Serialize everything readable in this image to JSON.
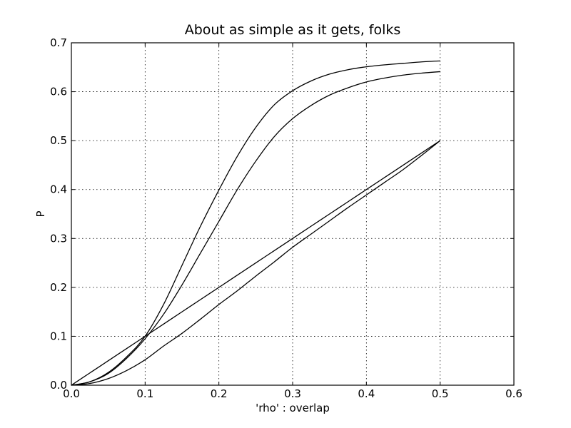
{
  "chart_data": {
    "type": "line",
    "title": "About as simple as it gets, folks",
    "xlabel": "'rho' : overlap",
    "ylabel": "P",
    "xlim": [
      0.0,
      0.6
    ],
    "ylim": [
      0.0,
      0.7
    ],
    "xticks": [
      "0.0",
      "0.1",
      "0.2",
      "0.3",
      "0.4",
      "0.5",
      "0.6"
    ],
    "yticks": [
      "0.0",
      "0.1",
      "0.2",
      "0.3",
      "0.4",
      "0.5",
      "0.6",
      "0.7"
    ],
    "grid": true,
    "line_color": "#000000",
    "x": [
      0.0,
      0.025,
      0.05,
      0.075,
      0.1,
      0.125,
      0.15,
      0.175,
      0.2,
      0.225,
      0.25,
      0.275,
      0.3,
      0.325,
      0.35,
      0.375,
      0.4,
      0.425,
      0.45,
      0.475,
      0.5
    ],
    "series": [
      {
        "values": [
          0.0,
          0.025,
          0.05,
          0.075,
          0.1,
          0.125,
          0.15,
          0.175,
          0.2,
          0.225,
          0.25,
          0.275,
          0.3,
          0.325,
          0.35,
          0.375,
          0.4,
          0.425,
          0.45,
          0.475,
          0.5
        ]
      },
      {
        "values": [
          0.0,
          0.0035,
          0.0135,
          0.03,
          0.052,
          0.08,
          0.106,
          0.135,
          0.165,
          0.193,
          0.223,
          0.252,
          0.282,
          0.309,
          0.336,
          0.363,
          0.389,
          0.415,
          0.441,
          0.47,
          0.5
        ]
      },
      {
        "values": [
          0.0,
          0.007,
          0.024,
          0.055,
          0.095,
          0.145,
          0.205,
          0.27,
          0.335,
          0.4,
          0.458,
          0.508,
          0.545,
          0.572,
          0.593,
          0.608,
          0.62,
          0.628,
          0.634,
          0.638,
          0.641
        ]
      },
      {
        "values": [
          0.0,
          0.007,
          0.026,
          0.058,
          0.1,
          0.165,
          0.245,
          0.325,
          0.399,
          0.468,
          0.527,
          0.573,
          0.602,
          0.622,
          0.636,
          0.645,
          0.651,
          0.655,
          0.658,
          0.661,
          0.663
        ]
      }
    ]
  }
}
